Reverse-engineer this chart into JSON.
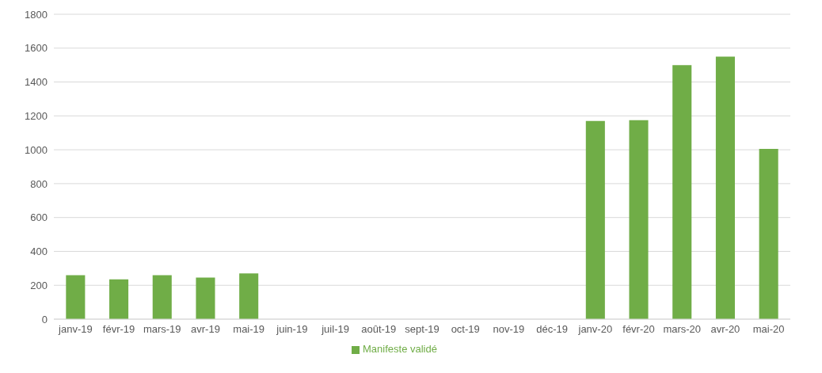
{
  "chart_data": {
    "type": "bar",
    "categories": [
      "janv-19",
      "févr-19",
      "mars-19",
      "avr-19",
      "mai-19",
      "juin-19",
      "juil-19",
      "août-19",
      "sept-19",
      "oct-19",
      "nov-19",
      "déc-19",
      "janv-20",
      "févr-20",
      "mars-20",
      "avr-20",
      "mai-20"
    ],
    "series": [
      {
        "name": "Manifeste validé",
        "color": "#70ad47",
        "values": [
          260,
          235,
          260,
          245,
          270,
          null,
          null,
          null,
          null,
          null,
          null,
          null,
          1170,
          1175,
          1500,
          1550,
          1005
        ]
      }
    ],
    "ylim": [
      0,
      1800
    ],
    "yticks": [
      0,
      200,
      400,
      600,
      800,
      1000,
      1200,
      1400,
      1600,
      1800
    ],
    "grid": "y",
    "legend": "bottom"
  }
}
